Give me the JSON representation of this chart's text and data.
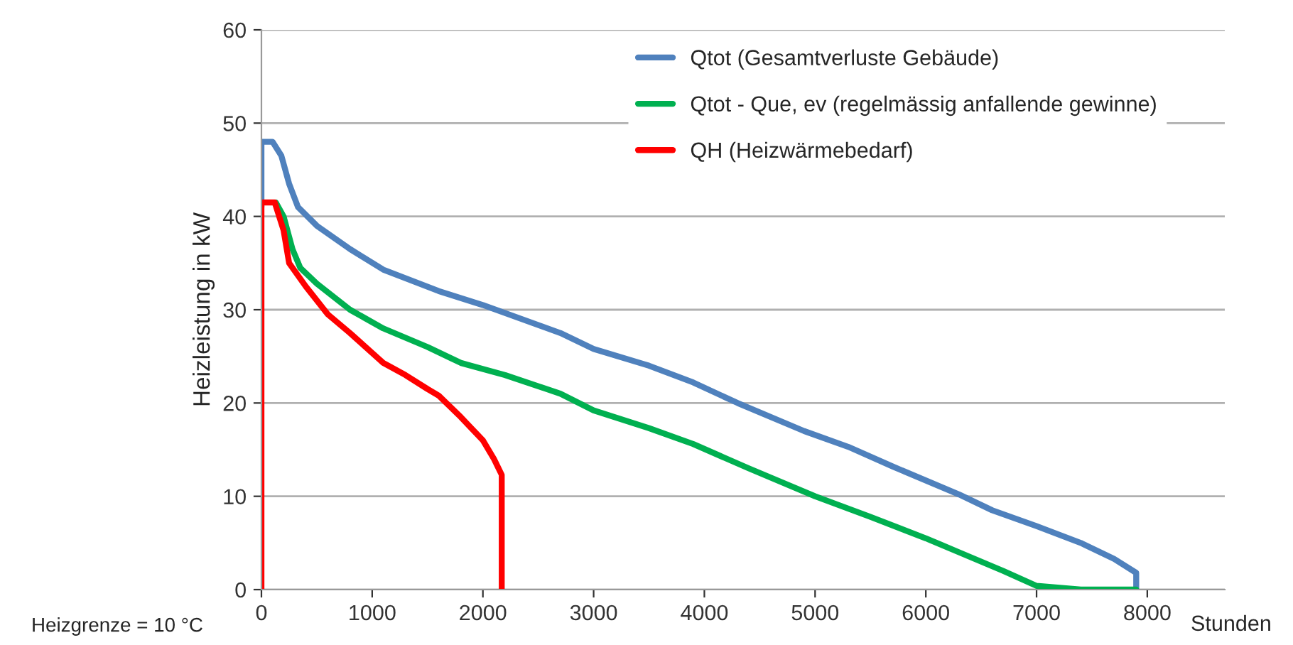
{
  "chart_data": {
    "type": "line",
    "xlabel": "Stunden",
    "ylabel": "Heizleistung in kW",
    "annotations": [
      "Heizgrenze = 10 °C"
    ],
    "xlim": [
      0,
      8700
    ],
    "ylim": [
      0,
      60
    ],
    "xticks": [
      0,
      1000,
      2000,
      3000,
      4000,
      5000,
      6000,
      7000,
      8000
    ],
    "yticks": [
      0,
      10,
      20,
      30,
      40,
      50,
      60
    ],
    "grid": "y",
    "legend": "top right",
    "marker": "none",
    "line_style": "solid",
    "series": [
      {
        "name": "Qtot (Gesamtverluste Gebäude)",
        "color": "#4f81bd",
        "x": [
          0,
          0,
          100,
          180,
          250,
          330,
          500,
          800,
          1100,
          1600,
          2000,
          2700,
          3000,
          3500,
          3900,
          4300,
          4900,
          5300,
          5700,
          6300,
          6600,
          7000,
          7400,
          7700,
          7900,
          7900
        ],
        "values": [
          41,
          48,
          48,
          46.5,
          43.5,
          41,
          39,
          36.5,
          34.3,
          32,
          30.5,
          27.5,
          25.8,
          24,
          22.2,
          20,
          17,
          15.3,
          13.2,
          10.2,
          8.5,
          6.8,
          5,
          3.3,
          1.8,
          0
        ]
      },
      {
        "name": "Qtot - Que, ev (regelmässig anfallende gewinne)",
        "color": "#00b050",
        "x": [
          130,
          200,
          280,
          350,
          500,
          800,
          1100,
          1500,
          1800,
          2200,
          2700,
          3000,
          3500,
          3900,
          4400,
          5000,
          5500,
          6000,
          6300,
          6700,
          7000,
          7400,
          7900
        ],
        "values": [
          41.5,
          40,
          36.5,
          34.5,
          32.8,
          30,
          28,
          26,
          24.3,
          23,
          21,
          19.2,
          17.3,
          15.6,
          13,
          10,
          7.8,
          5.5,
          4,
          2,
          0.4,
          0,
          0
        ]
      },
      {
        "name": "QH (Heizwärmebedarf)",
        "color": "#ff0000",
        "x": [
          0,
          0,
          120,
          200,
          250,
          400,
          600,
          800,
          1100,
          1300,
          1500,
          1600,
          1800,
          2000,
          2100,
          2170,
          2170
        ],
        "values": [
          0,
          41.5,
          41.5,
          38.5,
          35,
          32.5,
          29.5,
          27.5,
          24.3,
          23,
          21.5,
          20.8,
          18.5,
          16,
          14,
          12.3,
          0
        ]
      }
    ]
  }
}
